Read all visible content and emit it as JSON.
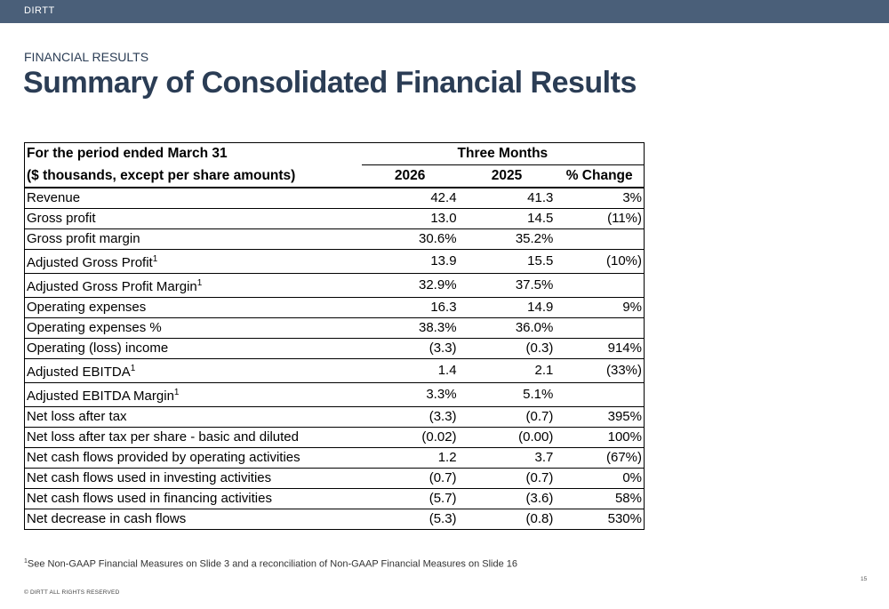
{
  "header": {
    "brand": "DIRTT"
  },
  "page": {
    "eyebrow": "FINANCIAL RESULTS",
    "title": "Summary of Consolidated Financial Results"
  },
  "table": {
    "period_label": "For the period ended March 31",
    "units_label": "($ thousands, except per share amounts)",
    "group_header": "Three Months",
    "columns": [
      "2026",
      "2025",
      "% Change"
    ],
    "rows": [
      {
        "label": "Revenue",
        "sup": "",
        "v2026": "42.4",
        "v2025": "41.3",
        "chg": "3%"
      },
      {
        "label": "Gross profit",
        "sup": "",
        "v2026": "13.0",
        "v2025": "14.5",
        "chg": "(11%)"
      },
      {
        "label": "Gross profit margin",
        "sup": "",
        "v2026": "30.6%",
        "v2025": "35.2%",
        "chg": ""
      },
      {
        "label": "Adjusted Gross Profit",
        "sup": "1",
        "v2026": "13.9",
        "v2025": "15.5",
        "chg": "(10%)"
      },
      {
        "label": "Adjusted Gross Profit Margin",
        "sup": "1",
        "v2026": "32.9%",
        "v2025": "37.5%",
        "chg": ""
      },
      {
        "label": "Operating expenses",
        "sup": "",
        "v2026": "16.3",
        "v2025": "14.9",
        "chg": "9%"
      },
      {
        "label": "Operating expenses %",
        "sup": "",
        "v2026": "38.3%",
        "v2025": "36.0%",
        "chg": ""
      },
      {
        "label": "Operating (loss) income",
        "sup": "",
        "v2026": "(3.3)",
        "v2025": "(0.3)",
        "chg": "914%"
      },
      {
        "label": "Adjusted EBITDA",
        "sup": "1",
        "v2026": "1.4",
        "v2025": "2.1",
        "chg": "(33%)"
      },
      {
        "label": "Adjusted EBITDA Margin",
        "sup": "1",
        "v2026": "3.3%",
        "v2025": "5.1%",
        "chg": ""
      },
      {
        "label": "Net loss after tax",
        "sup": "",
        "v2026": "(3.3)",
        "v2025": "(0.7)",
        "chg": "395%"
      },
      {
        "label": "Net loss after tax per share - basic and diluted",
        "sup": "",
        "v2026": "(0.02)",
        "v2025": "(0.00)",
        "chg": "100%"
      },
      {
        "label": "Net cash flows provided by operating activities",
        "sup": "",
        "v2026": "1.2",
        "v2025": "3.7",
        "chg": "(67%)"
      },
      {
        "label": "Net cash flows used in investing activities",
        "sup": "",
        "v2026": "(0.7)",
        "v2025": "(0.7)",
        "chg": "0%"
      },
      {
        "label": "Net cash flows used in financing activities",
        "sup": "",
        "v2026": "(5.7)",
        "v2025": "(3.6)",
        "chg": "58%"
      },
      {
        "label": "Net decrease in cash flows",
        "sup": "",
        "v2026": "(5.3)",
        "v2025": "(0.8)",
        "chg": "530%"
      }
    ]
  },
  "footnote": {
    "sup": "1",
    "text": "See Non-GAAP Financial Measures on Slide 3 and a reconciliation of Non-GAAP Financial Measures on Slide 16"
  },
  "footer": {
    "copyright": "© DIRTT ALL RIGHTS RESERVED",
    "page_number": "15"
  },
  "colors": {
    "topbar": "#4a5f79",
    "title": "#2b3d55"
  }
}
